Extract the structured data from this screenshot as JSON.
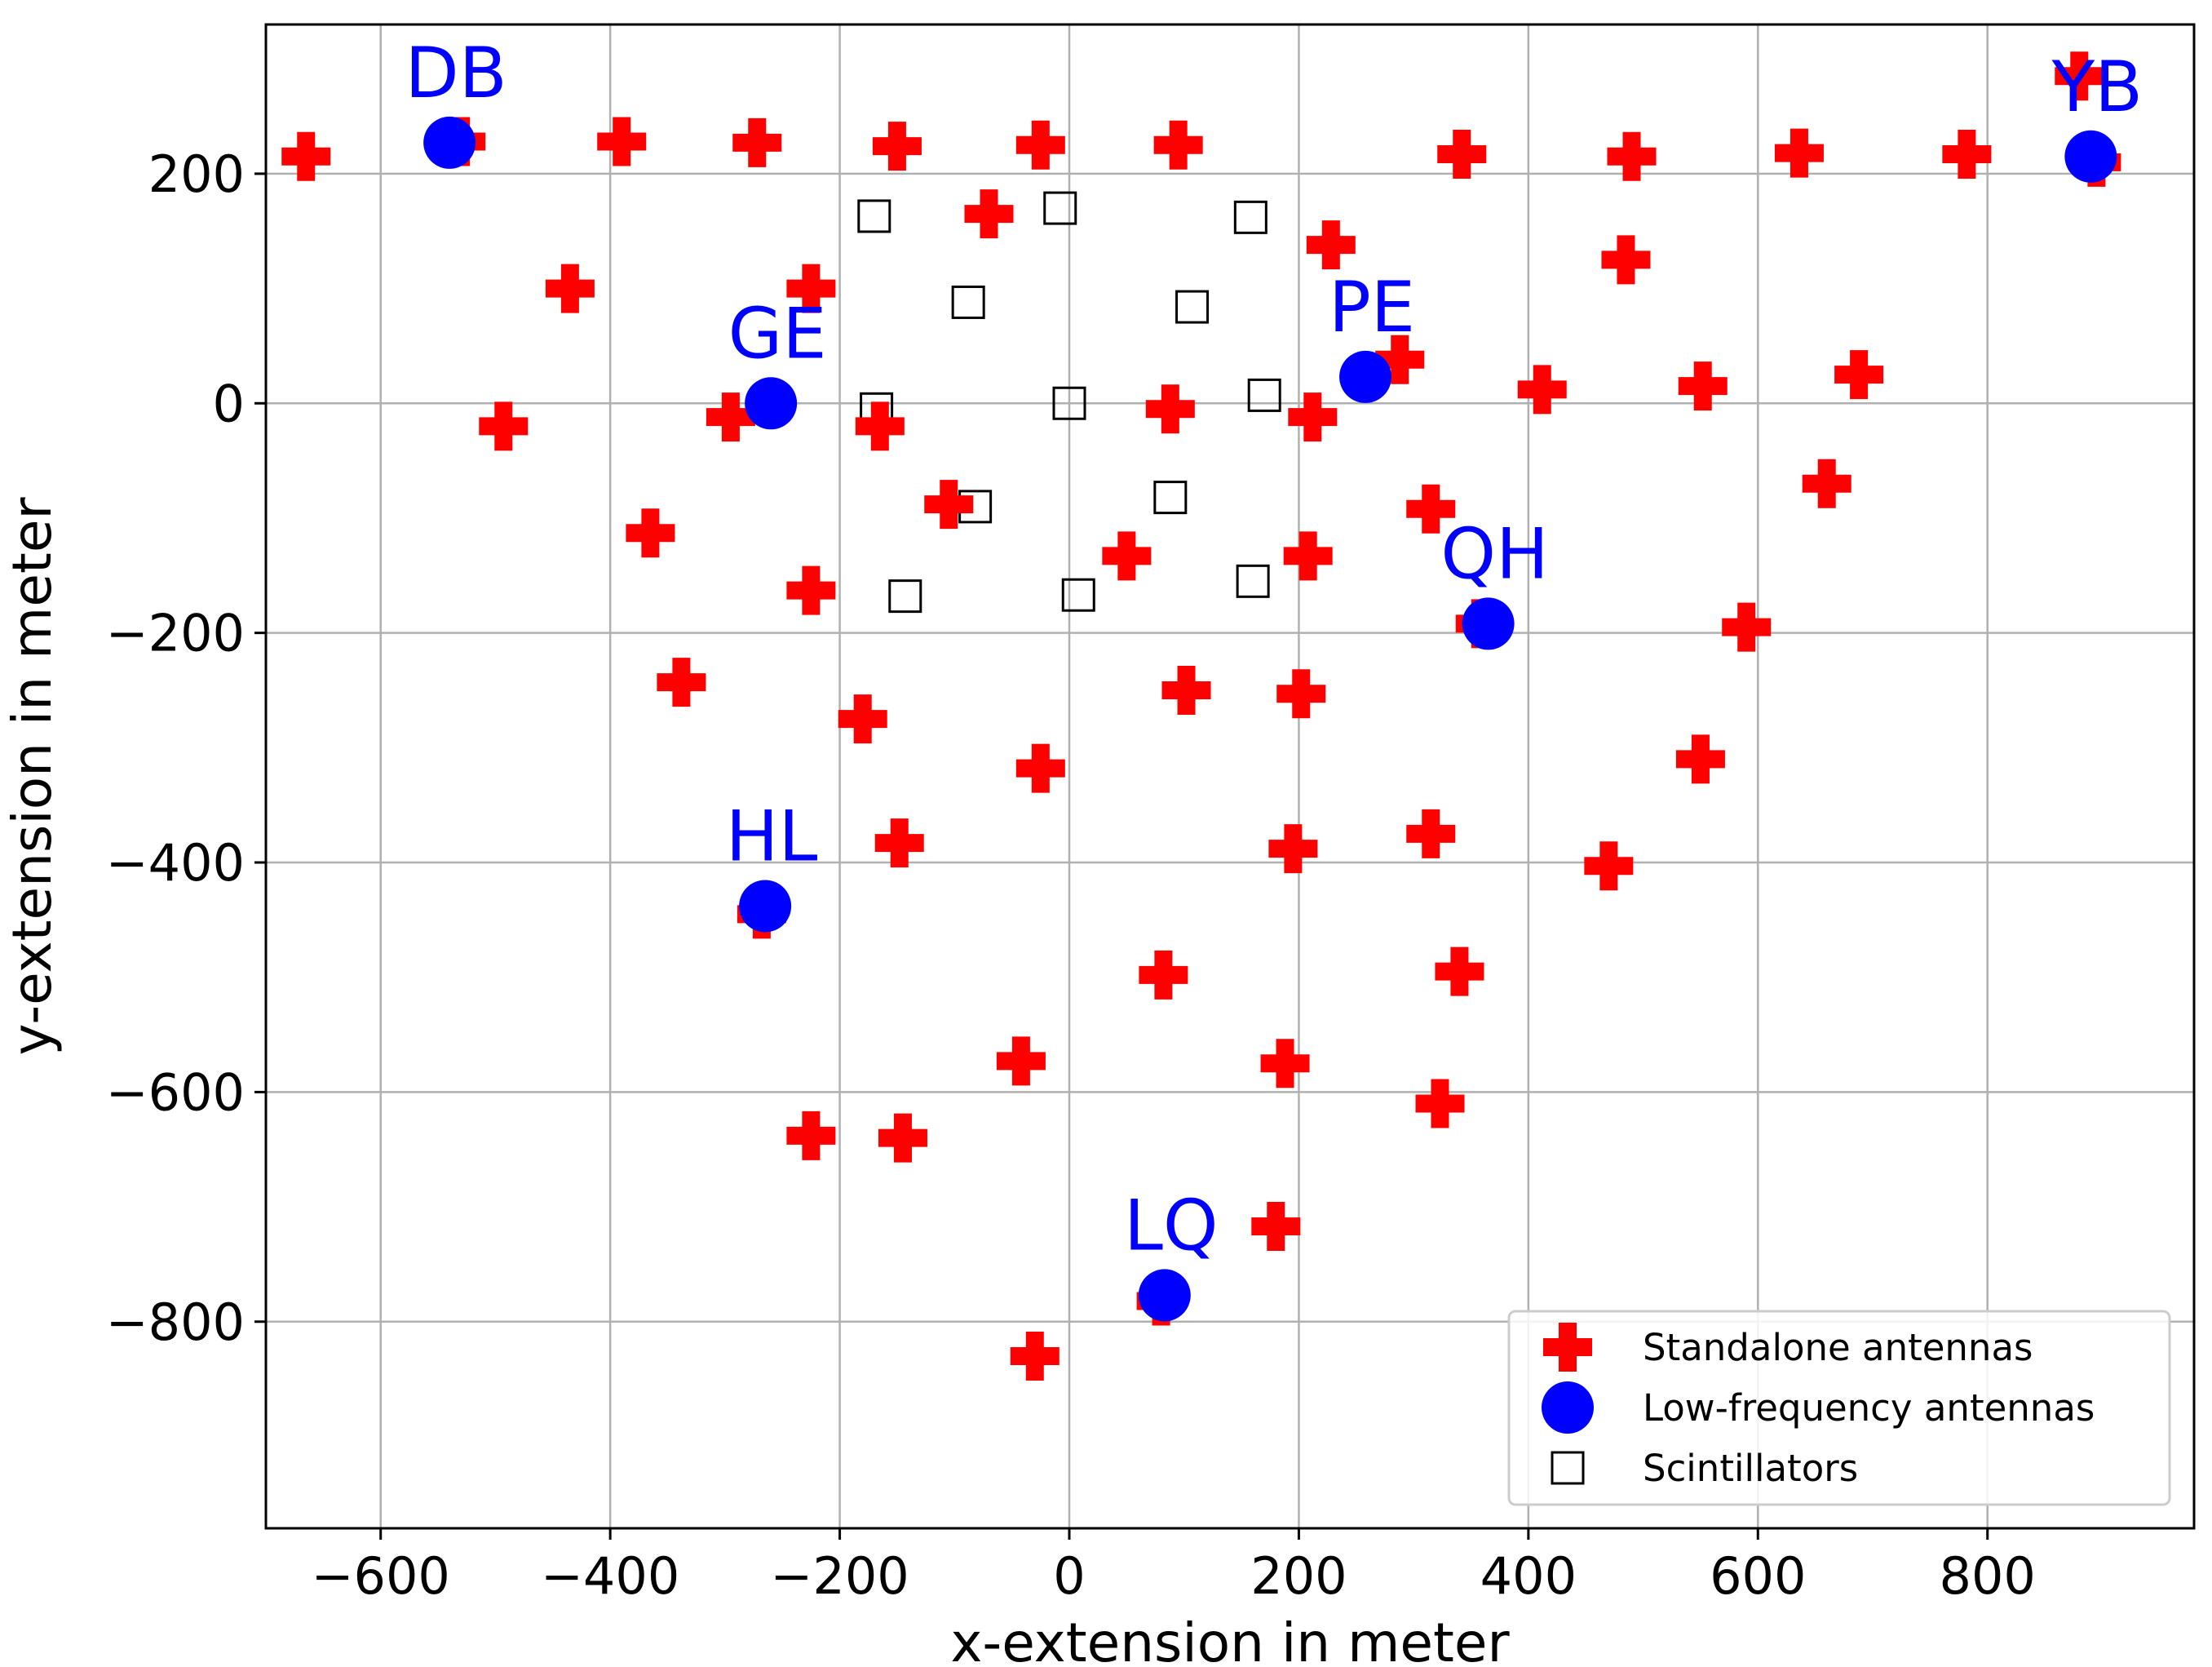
{
  "chart_data": {
    "type": "scatter",
    "title": "",
    "xlabel": "x-extension in meter",
    "ylabel": "y-extension in meter",
    "xlim": [
      -700,
      980
    ],
    "ylim": [
      -980,
      330
    ],
    "x_ticks": [
      -600,
      -400,
      -200,
      0,
      200,
      400,
      600,
      800
    ],
    "y_ticks": [
      200,
      0,
      -200,
      -400,
      -600,
      -800
    ],
    "grid": true,
    "legend": {
      "placement": "lower-right",
      "entries": [
        "Standalone antennas",
        "Low-frequency antennas",
        "Scintillators"
      ]
    },
    "colors": {
      "standalone": "#ff0000",
      "low_frequency": "#0000ff",
      "scintillator_edge": "#000000",
      "station_label": "#0000ff"
    },
    "series": [
      {
        "name": "Standalone antennas",
        "marker": "plus-filled",
        "points": [
          [
            -665,
            215
          ],
          [
            -530,
            228
          ],
          [
            -390,
            228
          ],
          [
            -272,
            227
          ],
          [
            -150,
            224
          ],
          [
            -25,
            225
          ],
          [
            95,
            225
          ],
          [
            342,
            217
          ],
          [
            490,
            215
          ],
          [
            636,
            218
          ],
          [
            782,
            217
          ],
          [
            880,
            285
          ],
          [
            895,
            210
          ],
          [
            -435,
            100
          ],
          [
            -225,
            100
          ],
          [
            -70,
            165
          ],
          [
            228,
            138
          ],
          [
            485,
            125
          ],
          [
            -493,
            -20
          ],
          [
            -295,
            -12
          ],
          [
            -165,
            -20
          ],
          [
            88,
            -5
          ],
          [
            212,
            -12
          ],
          [
            288,
            38
          ],
          [
            412,
            12
          ],
          [
            552,
            15
          ],
          [
            688,
            25
          ],
          [
            -365,
            -113
          ],
          [
            -105,
            -88
          ],
          [
            315,
            -92
          ],
          [
            660,
            -70
          ],
          [
            -225,
            -163
          ],
          [
            50,
            -133
          ],
          [
            208,
            -133
          ],
          [
            358,
            -192
          ],
          [
            590,
            -195
          ],
          [
            -338,
            -243
          ],
          [
            -180,
            -275
          ],
          [
            102,
            -250
          ],
          [
            202,
            -253
          ],
          [
            550,
            -310
          ],
          [
            -25,
            -318
          ],
          [
            -148,
            -383
          ],
          [
            195,
            -388
          ],
          [
            315,
            -375
          ],
          [
            470,
            -403
          ],
          [
            -268,
            -445
          ],
          [
            82,
            -498
          ],
          [
            340,
            -495
          ],
          [
            -42,
            -573
          ],
          [
            188,
            -575
          ],
          [
            323,
            -610
          ],
          [
            -225,
            -638
          ],
          [
            -145,
            -640
          ],
          [
            180,
            -717
          ],
          [
            80,
            -782
          ],
          [
            -30,
            -830
          ]
        ]
      },
      {
        "name": "Low-frequency antennas",
        "marker": "circle",
        "points": [
          [
            -540,
            227
          ],
          [
            -260,
            0
          ],
          [
            -265,
            -438
          ],
          [
            83,
            -777
          ],
          [
            258,
            23
          ],
          [
            365,
            -192
          ],
          [
            890,
            215
          ]
        ],
        "labels": [
          "DB",
          "GE",
          "HL",
          "LQ",
          "PE",
          "QH",
          "YB"
        ]
      },
      {
        "name": "Scintillators",
        "marker": "square-open",
        "points": [
          [
            -170,
            163
          ],
          [
            -8,
            170
          ],
          [
            158,
            162
          ],
          [
            -88,
            88
          ],
          [
            107,
            84
          ],
          [
            -168,
            -5
          ],
          [
            0,
            0
          ],
          [
            170,
            7
          ],
          [
            -82,
            -90
          ],
          [
            88,
            -82
          ],
          [
            -143,
            -168
          ],
          [
            8,
            -167
          ],
          [
            160,
            -155
          ]
        ]
      }
    ]
  }
}
